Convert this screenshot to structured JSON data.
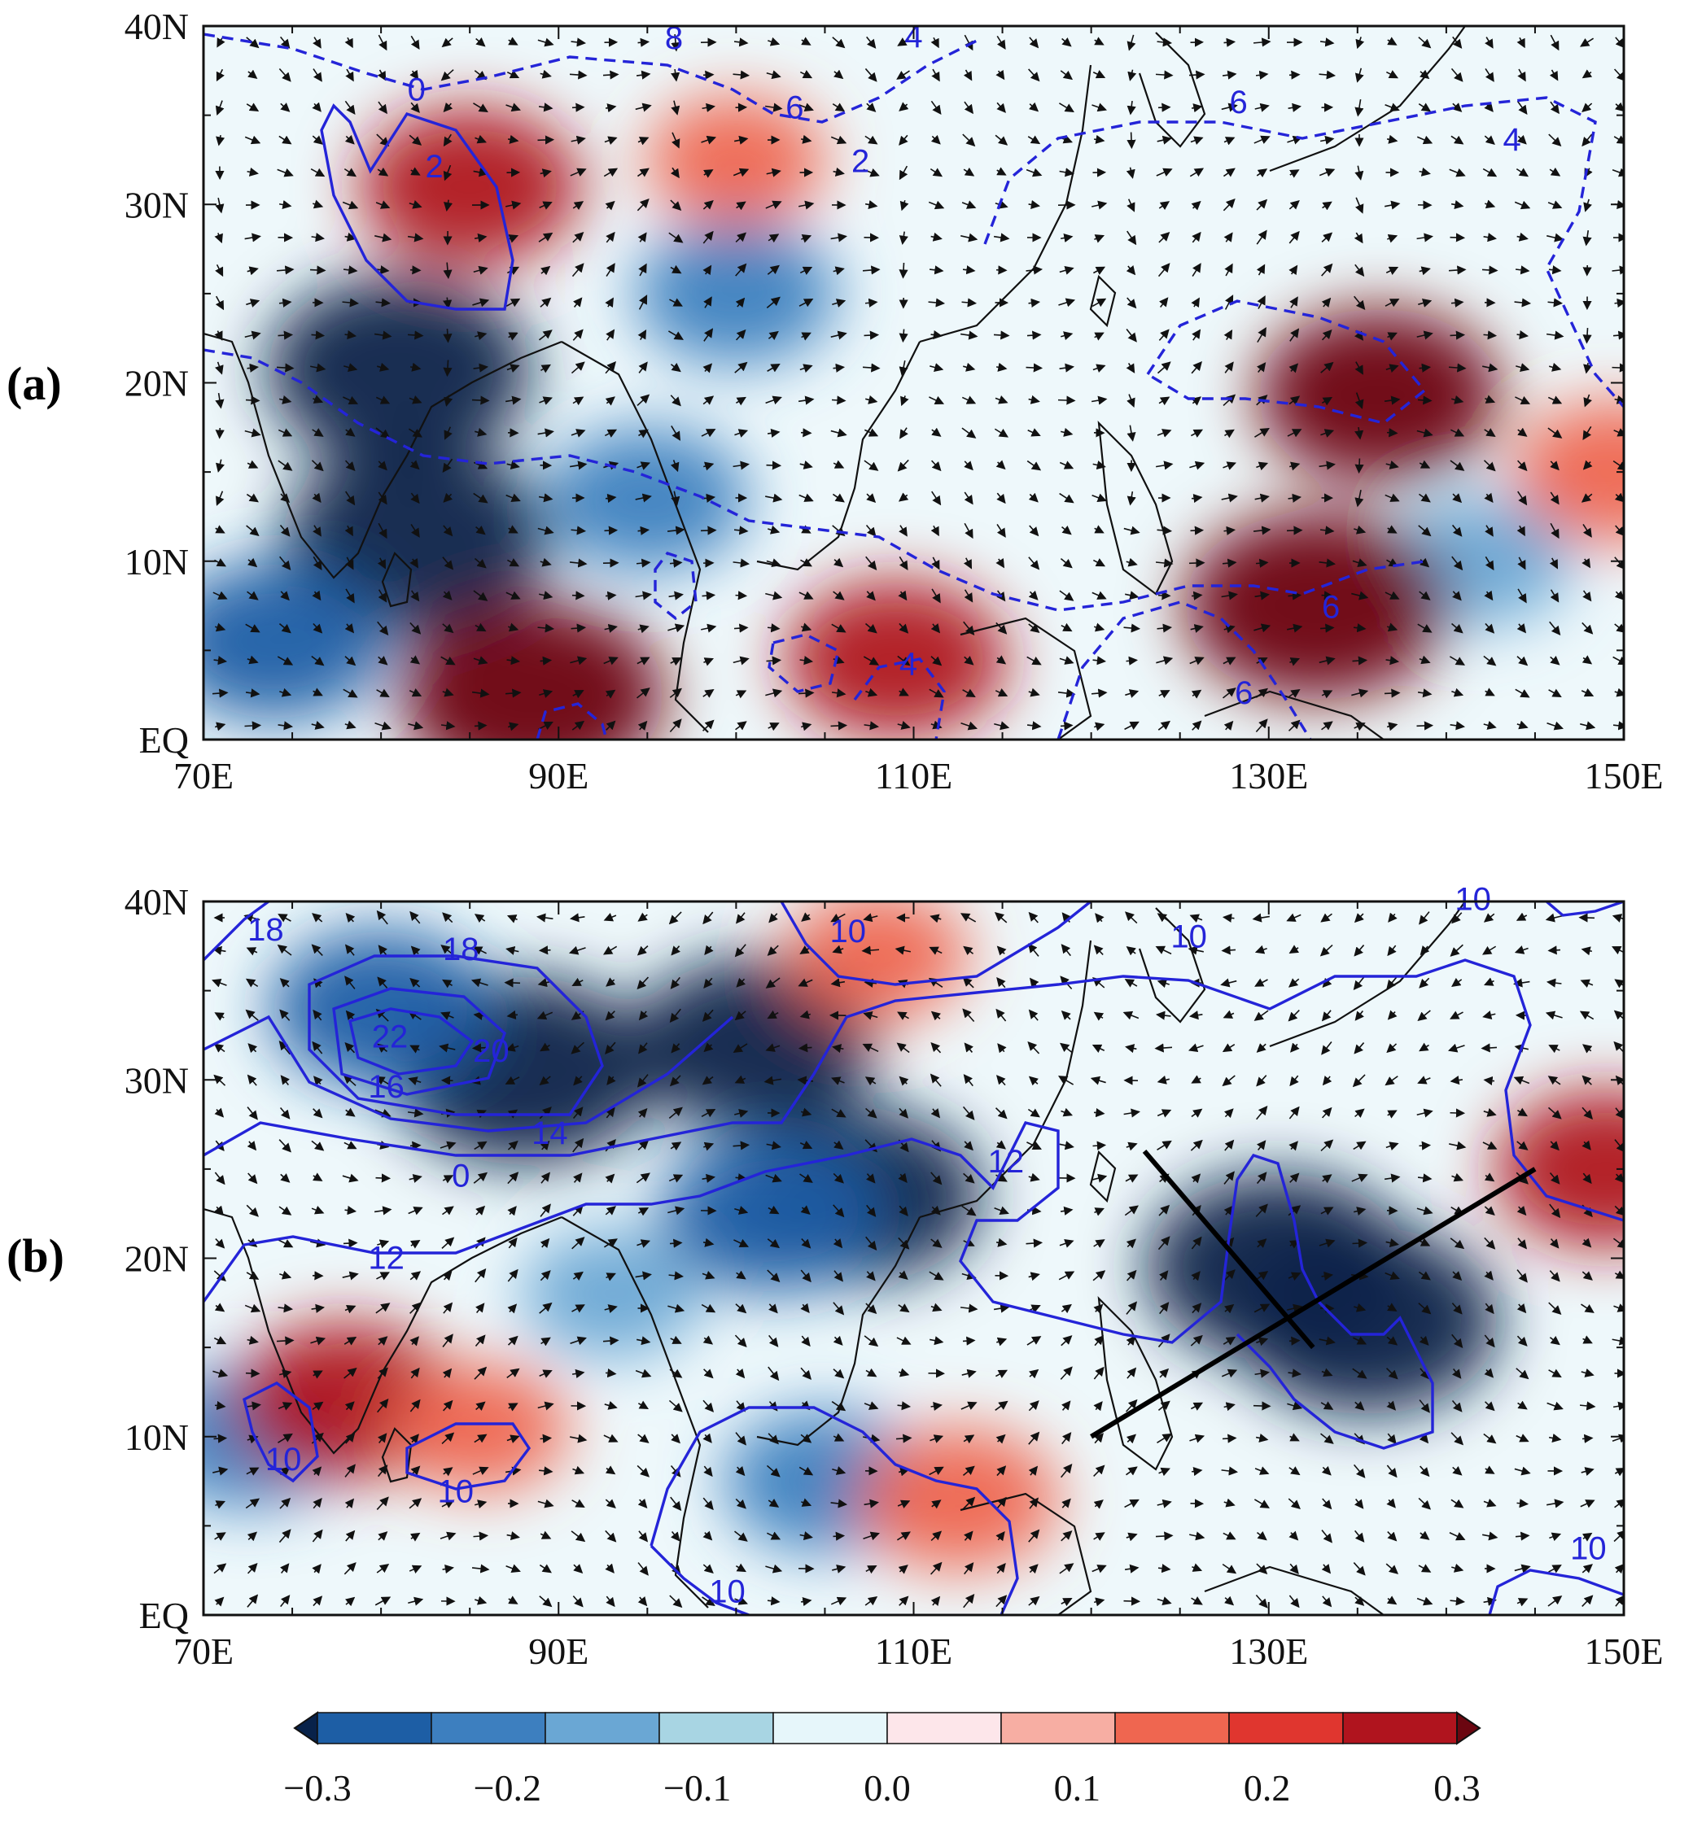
{
  "figure": {
    "panels": [
      {
        "id": "a",
        "label": "(a)",
        "xticks": [
          "70E",
          "90E",
          "110E",
          "130E",
          "150E"
        ],
        "yticks": [
          "EQ",
          "10N",
          "20N",
          "30N",
          "40N"
        ],
        "lon_range": [
          70,
          150
        ],
        "lat_range": [
          0,
          40
        ],
        "contour_labels": [
          {
            "text": "0",
            "lon": 82.0,
            "lat": 36.3
          },
          {
            "text": "2",
            "lon": 83.0,
            "lat": 32.0
          },
          {
            "text": "8",
            "lon": 96.5,
            "lat": 39.2
          },
          {
            "text": "6",
            "lon": 103.3,
            "lat": 35.3
          },
          {
            "text": "4",
            "lon": 110.0,
            "lat": 39.3
          },
          {
            "text": "2",
            "lon": 107.0,
            "lat": 32.3
          },
          {
            "text": "6",
            "lon": 128.3,
            "lat": 35.6
          },
          {
            "text": "4",
            "lon": 143.7,
            "lat": 33.5
          },
          {
            "text": "6",
            "lon": 133.5,
            "lat": 7.3
          },
          {
            "text": "4",
            "lon": 109.7,
            "lat": 4.1
          },
          {
            "text": "6",
            "lon": 128.6,
            "lat": 2.5
          }
        ],
        "anomaly_blobs": [
          {
            "lon": 81,
            "lat": 20.7,
            "value": -0.3
          },
          {
            "lon": 82,
            "lat": 11.3,
            "value": -0.3
          },
          {
            "lon": 74,
            "lat": 5.5,
            "value": -0.2
          },
          {
            "lon": 95,
            "lat": 13.5,
            "value": -0.15
          },
          {
            "lon": 100,
            "lat": 25,
            "value": -0.15
          },
          {
            "lon": 142,
            "lat": 10,
            "value": -0.1
          },
          {
            "lon": 88.5,
            "lat": 2.5,
            "value": 0.3
          },
          {
            "lon": 109,
            "lat": 4.5,
            "value": 0.2
          },
          {
            "lon": 132.7,
            "lat": 7.5,
            "value": 0.3
          },
          {
            "lon": 136.2,
            "lat": 19.3,
            "value": 0.25
          },
          {
            "lon": 85,
            "lat": 31,
            "value": 0.2
          },
          {
            "lon": 100,
            "lat": 32.5,
            "value": 0.1
          },
          {
            "lon": 149.5,
            "lat": 15,
            "value": 0.15
          }
        ]
      },
      {
        "id": "b",
        "label": "(b)",
        "xticks": [
          "70E",
          "90E",
          "110E",
          "130E",
          "150E"
        ],
        "yticks": [
          "EQ",
          "10N",
          "20N",
          "30N",
          "40N"
        ],
        "lon_range": [
          70,
          150
        ],
        "lat_range": [
          0,
          40
        ],
        "contour_labels": [
          {
            "text": "18",
            "lon": 73.5,
            "lat": 38.3
          },
          {
            "text": "18",
            "lon": 84.5,
            "lat": 37.2
          },
          {
            "text": "22",
            "lon": 80.5,
            "lat": 32.3
          },
          {
            "text": "20",
            "lon": 86.2,
            "lat": 31.5
          },
          {
            "text": "16",
            "lon": 80.3,
            "lat": 29.5
          },
          {
            "text": "14",
            "lon": 89.5,
            "lat": 26.9
          },
          {
            "text": "0",
            "lon": 84.5,
            "lat": 24.5
          },
          {
            "text": "10",
            "lon": 106.3,
            "lat": 38.2
          },
          {
            "text": "10",
            "lon": 125.5,
            "lat": 37.9
          },
          {
            "text": "10",
            "lon": 141.5,
            "lat": 40.0
          },
          {
            "text": "12",
            "lon": 115.2,
            "lat": 25.3
          },
          {
            "text": "12",
            "lon": 80.3,
            "lat": 19.9
          },
          {
            "text": "10",
            "lon": 74.5,
            "lat": 8.6
          },
          {
            "text": "10",
            "lon": 84.2,
            "lat": 6.8
          },
          {
            "text": "10",
            "lon": 99.5,
            "lat": 1.2
          },
          {
            "text": "10",
            "lon": 148.0,
            "lat": 3.6
          }
        ],
        "cross_lines": [
          {
            "from": {
              "lon": 120,
              "lat": 10
            },
            "to": {
              "lon": 145,
              "lat": 25
            }
          },
          {
            "from": {
              "lon": 123,
              "lat": 26
            },
            "to": {
              "lon": 132.5,
              "lat": 15
            }
          }
        ],
        "anomaly_blobs": [
          {
            "lon": 88,
            "lat": 30.5,
            "value": -0.3
          },
          {
            "lon": 130.5,
            "lat": 19.5,
            "value": -0.3
          },
          {
            "lon": 135.5,
            "lat": 16.5,
            "value": -0.3
          },
          {
            "lon": 107,
            "lat": 23.5,
            "value": -0.25
          },
          {
            "lon": 101,
            "lat": 32,
            "value": -0.25
          },
          {
            "lon": 102,
            "lat": 22.5,
            "value": -0.2
          },
          {
            "lon": 105,
            "lat": 7.5,
            "value": -0.15
          },
          {
            "lon": 93,
            "lat": 18,
            "value": -0.1
          },
          {
            "lon": 80,
            "lat": 34,
            "value": -0.2
          },
          {
            "lon": 72.5,
            "lat": 10,
            "value": -0.15
          },
          {
            "lon": 78,
            "lat": 12,
            "value": 0.2
          },
          {
            "lon": 112.5,
            "lat": 6.5,
            "value": 0.15
          },
          {
            "lon": 149,
            "lat": 25,
            "value": 0.2
          },
          {
            "lon": 108,
            "lat": 37,
            "value": 0.1
          },
          {
            "lon": 85.5,
            "lat": 10.5,
            "value": 0.1
          }
        ]
      }
    ],
    "colorbar": {
      "tick_labels": [
        "−0.3",
        "−0.2",
        "−0.1",
        "0.0",
        "0.1",
        "0.2",
        "0.3"
      ],
      "tick_values": [
        -0.3,
        -0.2,
        -0.1,
        0.0,
        0.1,
        0.2,
        0.3
      ],
      "colors": [
        "#08224a",
        "#1d5ea5",
        "#3d7fbf",
        "#6aa7d4",
        "#a8d5e3",
        "#e6f6fa",
        "#fde6ea",
        "#f7aea3",
        "#ef6650",
        "#e0362f",
        "#b0141e",
        "#6b0610"
      ]
    },
    "palette": {
      "contour": "#2424d8",
      "coast": "#111111",
      "section_line": "#000000"
    }
  }
}
